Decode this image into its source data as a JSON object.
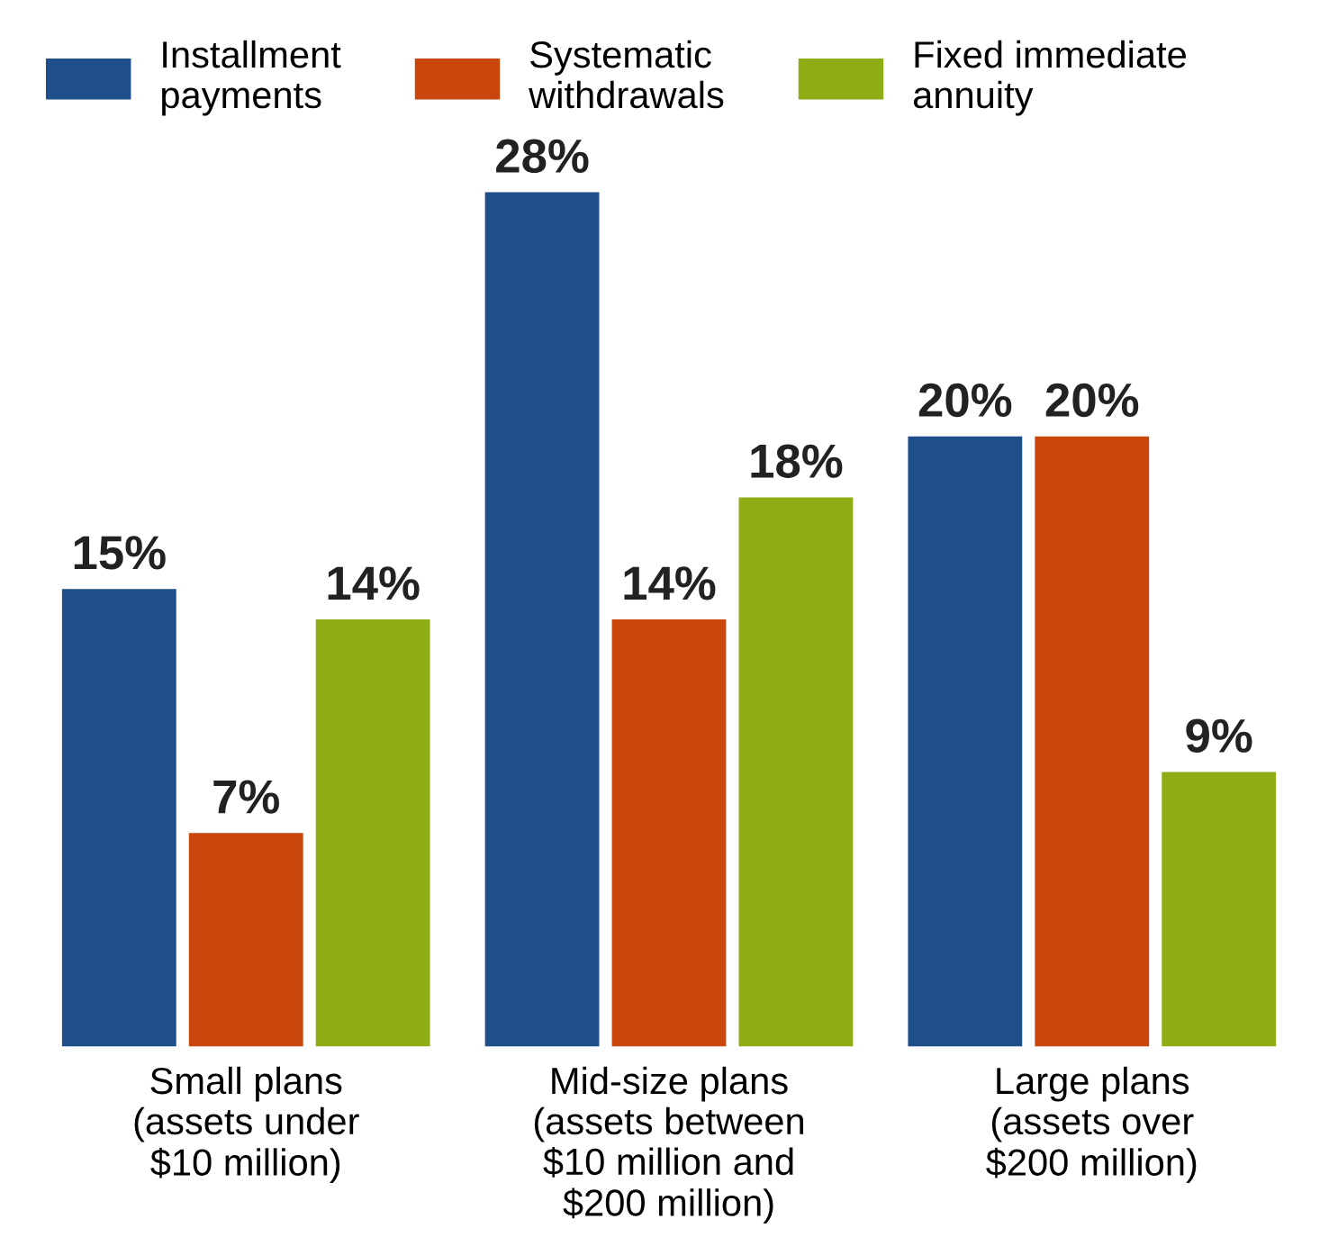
{
  "chart_data": {
    "type": "bar",
    "categories": [
      "Small plans\n(assets under\n$10 million)",
      "Mid-size plans\n(assets between\n$10 million and\n$200 million)",
      "Large plans\n(assets over\n$200 million)"
    ],
    "series": [
      {
        "name": "Installment\npayments",
        "color": "#1f4f8a",
        "values": [
          15,
          28,
          20
        ],
        "value_labels": [
          "15%",
          "28%",
          "20%"
        ]
      },
      {
        "name": "Systematic\nwithdrawals",
        "color": "#c9470c",
        "values": [
          7,
          14,
          20
        ],
        "value_labels": [
          "7%",
          "14%",
          "20%"
        ]
      },
      {
        "name": "Fixed immediate\nannuity",
        "color": "#8fae16",
        "values": [
          14,
          18,
          9
        ],
        "value_labels": [
          "14%",
          "18%",
          "9%"
        ]
      }
    ],
    "legend": "top",
    "grid": false
  }
}
